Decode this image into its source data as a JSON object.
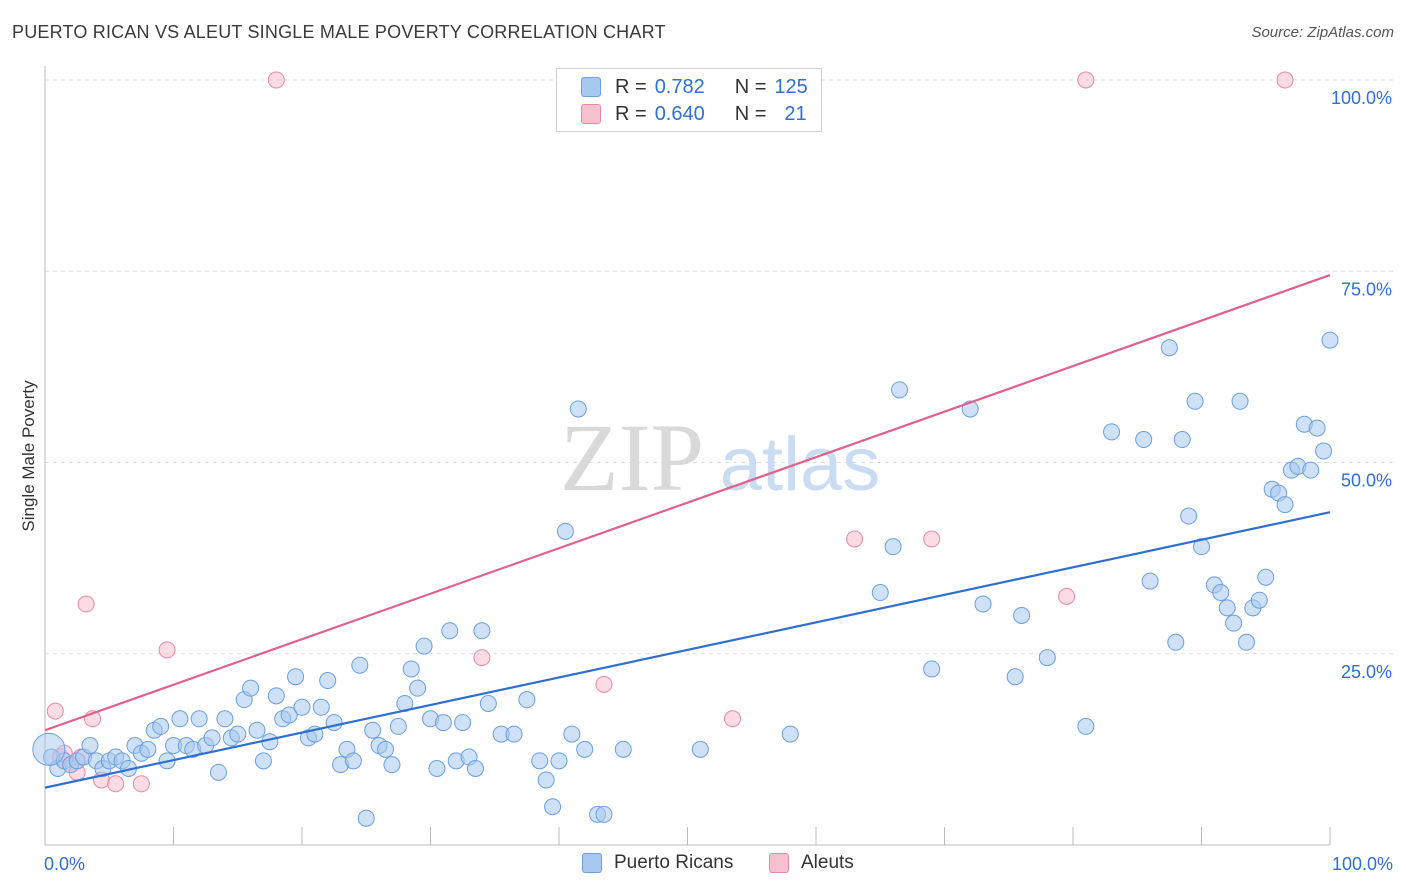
{
  "header": {
    "title": "PUERTO RICAN VS ALEUT SINGLE MALE POVERTY CORRELATION CHART",
    "source": "Source: ZipAtlas.com"
  },
  "watermark": {
    "zip": "ZIP",
    "atlas": "atlas"
  },
  "legend": {
    "rows": [
      {
        "r_label": "R =",
        "r_value": "0.782",
        "n_label": "N =",
        "n_value": "125",
        "color": "#a8c8f0",
        "border": "#6a9fe0"
      },
      {
        "r_label": "R =",
        "r_value": "0.640",
        "n_label": "N =",
        "n_value": "21",
        "color": "#f7c0cf",
        "border": "#e889a4"
      }
    ]
  },
  "bottom_legend": {
    "items": [
      {
        "label": "Puerto Ricans",
        "color": "#a8c8f0",
        "border": "#6a9fe0"
      },
      {
        "label": "Aleuts",
        "color": "#f7c0cf",
        "border": "#e889a4"
      }
    ]
  },
  "chart_data": {
    "type": "scatter",
    "title": "PUERTO RICAN VS ALEUT SINGLE MALE POVERTY CORRELATION CHART",
    "xlabel": "",
    "ylabel": "Single Male Poverty",
    "xlim": [
      0,
      100
    ],
    "ylim": [
      0,
      100
    ],
    "x_tick_labels": [
      {
        "value": 0,
        "label": "0.0%"
      },
      {
        "value": 100,
        "label": "100.0%"
      }
    ],
    "y_tick_labels": [
      {
        "value": 25,
        "label": "25.0%"
      },
      {
        "value": 50,
        "label": "50.0%"
      },
      {
        "value": 75,
        "label": "75.0%"
      },
      {
        "value": 100,
        "label": "100.0%"
      }
    ],
    "colors": {
      "blue_fill": "#a8c8f0",
      "blue_stroke": "#6a9fe0",
      "blue_line": "#2f6fd1",
      "pink_fill": "#f7c0cf",
      "pink_stroke": "#e889a4",
      "pink_line": "#e0628a"
    },
    "series": [
      {
        "name": "Puerto Ricans",
        "r": 0.782,
        "n": 125,
        "trend": {
          "x": [
            0,
            100
          ],
          "y": [
            7.5,
            43.5
          ]
        },
        "points": [
          [
            0.5,
            11.5
          ],
          [
            1,
            10
          ],
          [
            1.5,
            11
          ],
          [
            2,
            10.5
          ],
          [
            2.5,
            11
          ],
          [
            3,
            11.5
          ],
          [
            3.5,
            13
          ],
          [
            4,
            11
          ],
          [
            4.5,
            10
          ],
          [
            5,
            11
          ],
          [
            5.5,
            11.5
          ],
          [
            6,
            11
          ],
          [
            6.5,
            10
          ],
          [
            7,
            13
          ],
          [
            7.5,
            12
          ],
          [
            8,
            12.5
          ],
          [
            8.5,
            15
          ],
          [
            9,
            15.5
          ],
          [
            9.5,
            11
          ],
          [
            10,
            13
          ],
          [
            10.5,
            16.5
          ],
          [
            11,
            13
          ],
          [
            11.5,
            12.5
          ],
          [
            12,
            16.5
          ],
          [
            12.5,
            13
          ],
          [
            13,
            14
          ],
          [
            13.5,
            9.5
          ],
          [
            14,
            16.5
          ],
          [
            14.5,
            14
          ],
          [
            15,
            14.5
          ],
          [
            15.5,
            19
          ],
          [
            16,
            20.5
          ],
          [
            16.5,
            15
          ],
          [
            17,
            11
          ],
          [
            17.5,
            13.5
          ],
          [
            18,
            19.5
          ],
          [
            18.5,
            16.5
          ],
          [
            19,
            17
          ],
          [
            19.5,
            22
          ],
          [
            20,
            18
          ],
          [
            20.5,
            14
          ],
          [
            21,
            14.5
          ],
          [
            21.5,
            18
          ],
          [
            22,
            21.5
          ],
          [
            22.5,
            16
          ],
          [
            23,
            10.5
          ],
          [
            23.5,
            12.5
          ],
          [
            24,
            11
          ],
          [
            24.5,
            23.5
          ],
          [
            25,
            3.5
          ],
          [
            25.5,
            15
          ],
          [
            26,
            13
          ],
          [
            26.5,
            12.5
          ],
          [
            27,
            10.5
          ],
          [
            27.5,
            15.5
          ],
          [
            28,
            18.5
          ],
          [
            28.5,
            23
          ],
          [
            29,
            20.5
          ],
          [
            29.5,
            26
          ],
          [
            30,
            16.5
          ],
          [
            30.5,
            10
          ],
          [
            31,
            16
          ],
          [
            31.5,
            28
          ],
          [
            32,
            11
          ],
          [
            32.5,
            16
          ],
          [
            33,
            11.5
          ],
          [
            33.5,
            10
          ],
          [
            34,
            28
          ],
          [
            34.5,
            18.5
          ],
          [
            35.5,
            14.5
          ],
          [
            36.5,
            14.5
          ],
          [
            37.5,
            19
          ],
          [
            38.5,
            11
          ],
          [
            39,
            8.5
          ],
          [
            39.5,
            5
          ],
          [
            40,
            11
          ],
          [
            40.5,
            41
          ],
          [
            41,
            14.5
          ],
          [
            41.5,
            57
          ],
          [
            42,
            12.5
          ],
          [
            43,
            4
          ],
          [
            43.5,
            4
          ],
          [
            45,
            12.5
          ],
          [
            51,
            12.5
          ],
          [
            58,
            14.5
          ],
          [
            65,
            33
          ],
          [
            66,
            39
          ],
          [
            66.5,
            59.5
          ],
          [
            69,
            23
          ],
          [
            72,
            57
          ],
          [
            73,
            31.5
          ],
          [
            75.5,
            22
          ],
          [
            76,
            30
          ],
          [
            78,
            24.5
          ],
          [
            81,
            15.5
          ],
          [
            83,
            54
          ],
          [
            85.5,
            53
          ],
          [
            86,
            34.5
          ],
          [
            87.5,
            65
          ],
          [
            88,
            26.5
          ],
          [
            88.5,
            53
          ],
          [
            89,
            43
          ],
          [
            89.5,
            58
          ],
          [
            90,
            39
          ],
          [
            91,
            34
          ],
          [
            91.5,
            33
          ],
          [
            92,
            31
          ],
          [
            92.5,
            29
          ],
          [
            93,
            58
          ],
          [
            93.5,
            26.5
          ],
          [
            94,
            31
          ],
          [
            94.5,
            32
          ],
          [
            95,
            35
          ],
          [
            95.5,
            46.5
          ],
          [
            96,
            46
          ],
          [
            96.5,
            44.5
          ],
          [
            97,
            49
          ],
          [
            97.5,
            49.5
          ],
          [
            98,
            55
          ],
          [
            98.5,
            49
          ],
          [
            99,
            54.5
          ],
          [
            99.5,
            51.5
          ],
          [
            100,
            66
          ]
        ]
      },
      {
        "name": "Aleuts",
        "r": 0.64,
        "n": 21,
        "trend": {
          "x": [
            0,
            100
          ],
          "y": [
            15,
            74.5
          ]
        },
        "points": [
          [
            0.8,
            17.5
          ],
          [
            1.2,
            11.5
          ],
          [
            2,
            10.5
          ],
          [
            2.5,
            9.5
          ],
          [
            3.2,
            31.5
          ],
          [
            3.7,
            16.5
          ],
          [
            4.4,
            8.5
          ],
          [
            5.5,
            8
          ],
          [
            7.5,
            8
          ],
          [
            9.5,
            25.5
          ],
          [
            18,
            100
          ],
          [
            34,
            24.5
          ],
          [
            43.5,
            21
          ],
          [
            53.5,
            16.5
          ],
          [
            63,
            40
          ],
          [
            69,
            40
          ],
          [
            79.5,
            32.5
          ],
          [
            81,
            100
          ],
          [
            96.5,
            100
          ],
          [
            2.8,
            11.5
          ],
          [
            1.5,
            12
          ]
        ]
      }
    ]
  }
}
